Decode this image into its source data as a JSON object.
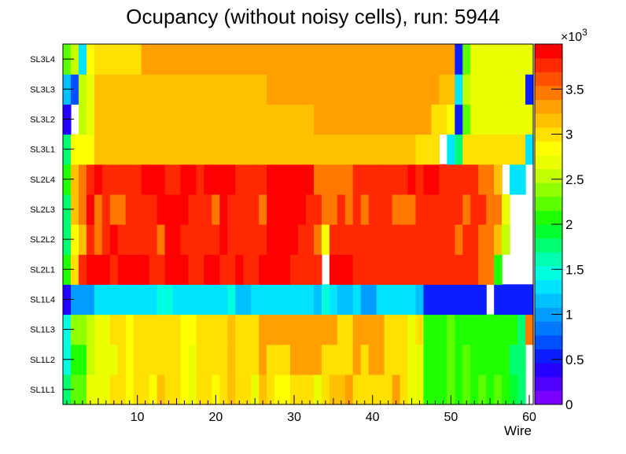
{
  "chart_data": {
    "type": "heatmap",
    "title": "Ocupancy (without noisy cells), run: 5944",
    "xlabel": "Wire",
    "ylabel": "",
    "x_range": [
      0.5,
      60.5
    ],
    "x_ticks": [
      10,
      20,
      30,
      40,
      50,
      60
    ],
    "rows": [
      "SL1L1",
      "SL1L2",
      "SL1L3",
      "SL1L4",
      "SL2L1",
      "SL2L2",
      "SL2L3",
      "SL2L4",
      "SL3L1",
      "SL3L2",
      "SL3L3",
      "SL3L4"
    ],
    "z_range": [
      0,
      4000
    ],
    "z_ticks": [
      0,
      500,
      1000,
      1500,
      2000,
      2500,
      3000,
      3500
    ],
    "z_tick_labels": [
      "0",
      "0.5",
      "1",
      "1.5",
      "2",
      "2.5",
      "3",
      "3.5"
    ],
    "z_exponent_label": "×10",
    "z_exponent_power": "3",
    "palette": [
      "#7a00ff",
      "#5000ff",
      "#2600ff",
      "#0a1eff",
      "#0050ff",
      "#0078ff",
      "#009cff",
      "#00c0ff",
      "#00e4ff",
      "#00ffe0",
      "#00ffb0",
      "#00ff70",
      "#00ff30",
      "#20ff00",
      "#5cff00",
      "#90ff00",
      "#c4ff00",
      "#ecff00",
      "#ffff00",
      "#ffe000",
      "#ffc000",
      "#ffa000",
      "#ff7800",
      "#ff5000",
      "#ff2800",
      "#ff0000"
    ],
    "rows_z": [
      [
        1800,
        2300,
        2300,
        2700,
        2700,
        2700,
        3000,
        3000,
        2850,
        3000,
        3050,
        2850,
        3100,
        3000,
        3000,
        2850,
        2700,
        3000,
        3050,
        2850,
        3000,
        3100,
        3000,
        3000,
        2700,
        3100,
        3000,
        2850,
        2850,
        3050,
        3000,
        3000,
        2700,
        3050,
        3100,
        3100,
        3300,
        3000,
        3000,
        3050,
        3050,
        3050,
        3300,
        3050,
        2700,
        2700,
        2150,
        2150,
        2150,
        2250,
        2150,
        2200,
        2150,
        2200,
        2100,
        2250,
        2000,
        1950,
        1800,
        0
      ],
      [
        1500,
        2150,
        2150,
        2500,
        2700,
        2700,
        2700,
        3000,
        2850,
        3000,
        3050,
        3000,
        3050,
        3000,
        3000,
        2850,
        2700,
        3000,
        3050,
        3000,
        3050,
        3100,
        3000,
        3050,
        3050,
        3250,
        3000,
        3050,
        3000,
        3300,
        3250,
        3300,
        3300,
        3050,
        3050,
        3050,
        3000,
        3300,
        3050,
        3300,
        3300,
        3050,
        3050,
        3050,
        2700,
        2700,
        2150,
        2150,
        2150,
        2250,
        2150,
        2200,
        2150,
        2150,
        2050,
        2150,
        2000,
        1800,
        1700,
        0
      ],
      [
        1500,
        2400,
        2400,
        2550,
        2700,
        2700,
        3000,
        3000,
        2850,
        3000,
        3050,
        3000,
        3050,
        3000,
        3000,
        2850,
        2850,
        3000,
        3050,
        3050,
        3050,
        3100,
        3050,
        3050,
        3050,
        3250,
        3300,
        3300,
        3250,
        3250,
        3300,
        3300,
        3300,
        3300,
        3300,
        3050,
        3050,
        3300,
        3300,
        3300,
        3300,
        3050,
        3050,
        3050,
        2700,
        3000,
        2150,
        2150,
        2150,
        2250,
        2150,
        2100,
        2150,
        2150,
        2150,
        2150,
        2050,
        2000,
        1700,
        3500
      ],
      [
        400,
        1000,
        1000,
        1000,
        1300,
        1300,
        1300,
        1300,
        1300,
        1300,
        1300,
        1300,
        1400,
        1400,
        1300,
        1300,
        1300,
        1300,
        1300,
        1300,
        1300,
        1400,
        1200,
        1200,
        1300,
        1300,
        1300,
        1300,
        1300,
        1300,
        1300,
        1300,
        1200,
        1500,
        1300,
        1100,
        1100,
        1300,
        1000,
        1000,
        1300,
        1300,
        1300,
        1300,
        1300,
        1100,
        600,
        600,
        600,
        600,
        600,
        600,
        600,
        600,
        0,
        600,
        600,
        600,
        500,
        500
      ],
      [
        2000,
        3000,
        3700,
        3900,
        3900,
        3900,
        3700,
        3900,
        3900,
        3900,
        3900,
        3700,
        3700,
        3900,
        3900,
        3900,
        3800,
        3700,
        4000,
        4000,
        3800,
        3800,
        3900,
        3700,
        3700,
        4000,
        4000,
        4000,
        4000,
        3700,
        3700,
        3700,
        3700,
        0,
        4000,
        4000,
        4000,
        3700,
        3700,
        3700,
        3700,
        3700,
        3700,
        3700,
        3700,
        3700,
        3700,
        3700,
        3700,
        3700,
        3700,
        3700,
        3700,
        3400,
        3400,
        2000,
        0,
        0,
        0,
        0
      ],
      [
        1800,
        2850,
        3100,
        3700,
        3400,
        3700,
        3900,
        3700,
        3700,
        3700,
        3700,
        3700,
        3400,
        3900,
        3900,
        3700,
        3700,
        3700,
        3700,
        3700,
        3900,
        3700,
        3700,
        3700,
        3700,
        3700,
        4000,
        4000,
        4000,
        4000,
        3700,
        3700,
        3400,
        2900,
        3700,
        3700,
        3700,
        3700,
        3700,
        3700,
        3700,
        3700,
        3700,
        3700,
        3700,
        3700,
        3700,
        3700,
        3700,
        3700,
        3400,
        3700,
        3700,
        3400,
        3400,
        3100,
        2500,
        0,
        0,
        0
      ],
      [
        1700,
        3100,
        3400,
        3900,
        3400,
        3700,
        3400,
        3400,
        3700,
        3700,
        3700,
        3700,
        3900,
        3900,
        3900,
        3900,
        3700,
        3700,
        3700,
        3400,
        3900,
        3700,
        3700,
        3700,
        3700,
        3400,
        3900,
        3900,
        3900,
        3900,
        3900,
        3700,
        3700,
        3400,
        3400,
        3700,
        3400,
        3700,
        3400,
        3700,
        3700,
        3700,
        3400,
        3400,
        3400,
        3700,
        3700,
        3700,
        3700,
        3700,
        3700,
        3400,
        3700,
        3700,
        3400,
        3400,
        2700,
        0,
        0,
        0
      ],
      [
        2000,
        3100,
        3400,
        3700,
        3900,
        3700,
        3700,
        3700,
        3700,
        3700,
        3900,
        3900,
        3900,
        3700,
        3700,
        3900,
        3900,
        3700,
        3900,
        3900,
        3900,
        3900,
        3700,
        3700,
        3700,
        3700,
        3900,
        3900,
        3900,
        3900,
        3900,
        3900,
        3400,
        3400,
        3400,
        3400,
        3400,
        3700,
        3700,
        3700,
        3700,
        3700,
        3700,
        3700,
        3900,
        3700,
        4000,
        4000,
        3700,
        3700,
        3700,
        3700,
        3700,
        3400,
        3400,
        3100,
        0,
        1300,
        1300,
        0
      ],
      [
        1800,
        2850,
        2850,
        2850,
        3100,
        3100,
        3100,
        3200,
        3100,
        3100,
        3100,
        3100,
        3100,
        3200,
        3100,
        3100,
        3100,
        3100,
        3100,
        3100,
        3100,
        3100,
        3100,
        3100,
        3100,
        3200,
        3100,
        3200,
        3100,
        3200,
        3200,
        3200,
        3200,
        3200,
        3200,
        3200,
        3200,
        3200,
        3200,
        3200,
        3200,
        3200,
        3200,
        3200,
        3200,
        3000,
        3000,
        3000,
        0,
        1300,
        1800,
        3000,
        3000,
        3000,
        3000,
        3000,
        3000,
        3000,
        3000,
        1300
      ],
      [
        400,
        0,
        2500,
        2700,
        3100,
        3100,
        3100,
        3100,
        3100,
        3100,
        3100,
        3100,
        3100,
        3100,
        3100,
        3100,
        3100,
        3100,
        3100,
        3100,
        3100,
        3100,
        3100,
        3100,
        3100,
        3100,
        3100,
        3200,
        3100,
        3100,
        3200,
        3200,
        3300,
        3300,
        3300,
        3300,
        3300,
        3300,
        3300,
        3300,
        3300,
        3300,
        3300,
        3300,
        3300,
        3300,
        3300,
        3000,
        3000,
        2850,
        600,
        2200,
        2700,
        2700,
        2700,
        2700,
        2700,
        2700,
        2700,
        2700
      ],
      [
        1100,
        700,
        2500,
        2700,
        3100,
        3100,
        3100,
        3100,
        3100,
        3100,
        3100,
        3100,
        3100,
        3100,
        3100,
        3100,
        3100,
        3100,
        3100,
        3100,
        3100,
        3100,
        3100,
        3100,
        3100,
        3100,
        3300,
        3300,
        3300,
        3300,
        3300,
        3300,
        3300,
        3300,
        3300,
        3300,
        3300,
        3300,
        3300,
        3300,
        3300,
        3300,
        3300,
        3300,
        3300,
        3300,
        3300,
        3300,
        3100,
        3100,
        1300,
        2500,
        2700,
        2700,
        2700,
        2700,
        2700,
        2700,
        2700,
        500
      ],
      [
        2200,
        2500,
        1300,
        2850,
        3000,
        3000,
        3000,
        3000,
        3000,
        3000,
        3300,
        3300,
        3300,
        3300,
        3300,
        3300,
        3300,
        3300,
        3300,
        3300,
        3300,
        3300,
        3300,
        3300,
        3300,
        3300,
        3300,
        3300,
        3300,
        3300,
        3300,
        3300,
        3300,
        3300,
        3300,
        3300,
        3300,
        3300,
        3300,
        3300,
        3300,
        3300,
        3300,
        3300,
        3300,
        3300,
        3300,
        3300,
        3300,
        3300,
        600,
        2200,
        2700,
        2700,
        2700,
        2700,
        2700,
        2700,
        2700,
        2700
      ]
    ]
  }
}
